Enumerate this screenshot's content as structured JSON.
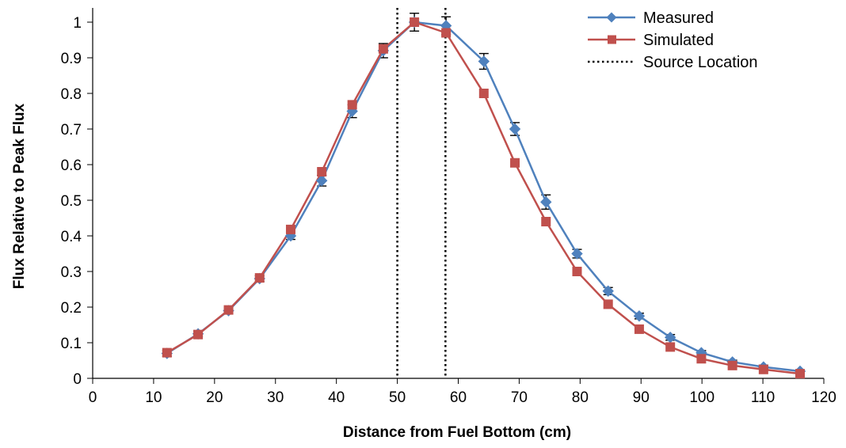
{
  "chart_data": {
    "type": "line",
    "title": "",
    "xlabel": "Distance from Fuel Bottom (cm)",
    "ylabel": "Flux Relative to Peak Flux",
    "xlim": [
      0,
      120
    ],
    "ylim": [
      0,
      1.05
    ],
    "x_ticks": [
      0,
      10,
      20,
      30,
      40,
      50,
      60,
      70,
      80,
      90,
      100,
      110,
      120
    ],
    "y_ticks": [
      0,
      0.1,
      0.2,
      0.3,
      0.4,
      0.5,
      0.6,
      0.7,
      0.8,
      0.9,
      1
    ],
    "x_tick_labels": [
      "0",
      "10",
      "20",
      "30",
      "40",
      "50",
      "60",
      "70",
      "80",
      "90",
      "100",
      "110",
      "120"
    ],
    "y_tick_labels": [
      "0",
      "0.1",
      "0.2",
      "0.3",
      "0.4",
      "0.5",
      "0.6",
      "0.7",
      "0.8",
      "0.9",
      "1"
    ],
    "grid": false,
    "legend_position": "top-right",
    "series": [
      {
        "name": "Measured",
        "color": "#4F81BD",
        "marker": "diamond",
        "x": [
          12.2,
          17.3,
          22.3,
          27.4,
          32.5,
          37.6,
          42.6,
          47.7,
          52.8,
          58.0,
          64.2,
          69.3,
          74.4,
          79.5,
          84.6,
          89.7,
          94.8,
          99.9,
          105.0,
          110.1,
          116.1
        ],
        "y": [
          0.07,
          0.125,
          0.19,
          0.28,
          0.4,
          0.555,
          0.75,
          0.92,
          1.0,
          0.99,
          0.89,
          0.7,
          0.495,
          0.35,
          0.245,
          0.175,
          0.115,
          0.072,
          0.046,
          0.032,
          0.02
        ],
        "error": [
          0.008,
          0.008,
          0.008,
          0.008,
          0.01,
          0.015,
          0.018,
          0.02,
          0.025,
          0.025,
          0.022,
          0.018,
          0.02,
          0.012,
          0.01,
          0.008,
          0.008,
          0.006,
          0.005,
          0.005,
          0.004
        ]
      },
      {
        "name": "Simulated",
        "color": "#C0504D",
        "marker": "square",
        "x": [
          12.2,
          17.3,
          22.3,
          27.4,
          32.5,
          37.6,
          42.6,
          47.7,
          52.8,
          58.0,
          64.2,
          69.3,
          74.4,
          79.5,
          84.6,
          89.7,
          94.8,
          99.9,
          105.0,
          110.1,
          116.1
        ],
        "y": [
          0.072,
          0.123,
          0.192,
          0.282,
          0.418,
          0.58,
          0.768,
          0.925,
          1.0,
          0.97,
          0.8,
          0.605,
          0.44,
          0.3,
          0.208,
          0.138,
          0.088,
          0.055,
          0.036,
          0.025,
          0.013
        ]
      },
      {
        "name": "Source Location",
        "color": "#000000",
        "style": "dotted-vertical",
        "x": [
          50,
          57.9
        ]
      }
    ]
  }
}
